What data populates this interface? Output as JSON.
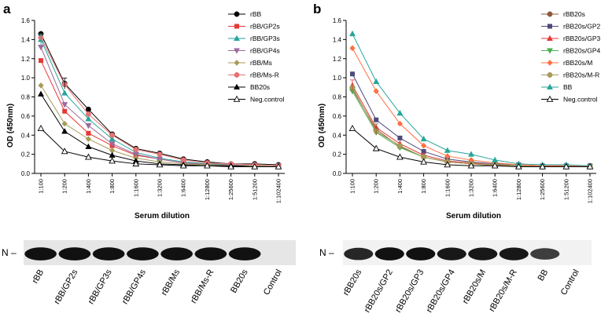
{
  "chart_data": [
    {
      "type": "line",
      "panel": "a",
      "xlabel": "Serum dilution",
      "ylabel": "OD (450nm)",
      "ylim": [
        0,
        1.6
      ],
      "yticks": [
        "0.0",
        "0.2",
        "0.4",
        "0.6",
        "0.8",
        "1.0",
        "1.2",
        "1.4",
        "1.6"
      ],
      "categories": [
        "1:100",
        "1:200",
        "1:400",
        "1:800",
        "1:1600",
        "1:3200",
        "1:6400",
        "1:12800",
        "1:25600",
        "1:51200",
        "1:102400"
      ],
      "legend_position": "top-right",
      "series": [
        {
          "name": "rBB",
          "color": "#000000",
          "marker": "circle",
          "values": [
            1.46,
            0.94,
            0.67,
            0.41,
            0.26,
            0.21,
            0.15,
            0.12,
            0.1,
            0.1,
            0.09
          ]
        },
        {
          "name": "rBB/GP2s",
          "color": "#e53935",
          "marker": "square",
          "values": [
            1.18,
            0.65,
            0.42,
            0.29,
            0.19,
            0.15,
            0.11,
            0.1,
            0.09,
            0.08,
            0.08
          ]
        },
        {
          "name": "rBB/GP3s",
          "color": "#26a69a",
          "marker": "triangle-up",
          "values": [
            1.4,
            0.84,
            0.57,
            0.36,
            0.22,
            0.16,
            0.12,
            0.1,
            0.09,
            0.08,
            0.08
          ]
        },
        {
          "name": "rBB/GP4s",
          "color": "#9c6b9c",
          "marker": "triangle-down",
          "values": [
            1.32,
            0.72,
            0.5,
            0.31,
            0.2,
            0.15,
            0.11,
            0.09,
            0.09,
            0.08,
            0.08
          ]
        },
        {
          "name": "rBB/Ms",
          "color": "#a89a5a",
          "marker": "diamond",
          "values": [
            0.92,
            0.52,
            0.36,
            0.24,
            0.16,
            0.12,
            0.1,
            0.09,
            0.08,
            0.08,
            0.08
          ]
        },
        {
          "name": "rBB/Ms-R",
          "color": "#e57373",
          "marker": "circle",
          "values": [
            1.42,
            0.93,
            0.62,
            0.4,
            0.25,
            0.2,
            0.14,
            0.11,
            0.1,
            0.09,
            0.08
          ]
        },
        {
          "name": "BB20s",
          "color": "#000000",
          "marker": "triangle-up",
          "values": [
            0.83,
            0.44,
            0.28,
            0.19,
            0.13,
            0.1,
            0.09,
            0.08,
            0.08,
            0.07,
            0.07
          ]
        },
        {
          "name": "Neg.control",
          "color": "#000000",
          "marker": "triangle-up-open",
          "values": [
            0.47,
            0.23,
            0.17,
            0.13,
            0.1,
            0.09,
            0.08,
            0.08,
            0.07,
            0.07,
            0.07
          ]
        }
      ]
    },
    {
      "type": "line",
      "panel": "b",
      "xlabel": "Serum dilution",
      "ylabel": "OD (450nm)",
      "ylim": [
        0,
        1.6
      ],
      "yticks": [
        "0.0",
        "0.2",
        "0.4",
        "0.6",
        "0.8",
        "1.0",
        "1.2",
        "1.4",
        "1.6"
      ],
      "categories": [
        "1:100",
        "1:200",
        "1:400",
        "1:800",
        "1:1600",
        "1:3200",
        "1:6400",
        "1:12800",
        "1:25600",
        "1:51200",
        "1:102400"
      ],
      "legend_position": "top-right",
      "series": [
        {
          "name": "rBB20s",
          "color": "#8d5a3c",
          "marker": "circle",
          "values": [
            0.88,
            0.46,
            0.28,
            0.17,
            0.12,
            0.1,
            0.08,
            0.08,
            0.07,
            0.07,
            0.07
          ]
        },
        {
          "name": "rBB20s/GP2",
          "color": "#4e4a7a",
          "marker": "square",
          "values": [
            1.04,
            0.56,
            0.37,
            0.23,
            0.15,
            0.12,
            0.1,
            0.09,
            0.08,
            0.08,
            0.08
          ]
        },
        {
          "name": "rBB20s/GP3",
          "color": "#e53935",
          "marker": "triangle-up",
          "values": [
            0.92,
            0.48,
            0.31,
            0.19,
            0.13,
            0.11,
            0.09,
            0.08,
            0.08,
            0.07,
            0.07
          ]
        },
        {
          "name": "rBB20s/GP4",
          "color": "#4caf50",
          "marker": "triangle-down",
          "values": [
            0.86,
            0.43,
            0.27,
            0.17,
            0.12,
            0.1,
            0.09,
            0.08,
            0.07,
            0.07,
            0.07
          ]
        },
        {
          "name": "rBB20s/M",
          "color": "#ff7043",
          "marker": "diamond",
          "values": [
            1.31,
            0.86,
            0.52,
            0.29,
            0.18,
            0.14,
            0.11,
            0.09,
            0.08,
            0.08,
            0.08
          ]
        },
        {
          "name": "rBB20s/M-R",
          "color": "#a89a5a",
          "marker": "circle",
          "values": [
            0.9,
            0.44,
            0.29,
            0.17,
            0.12,
            0.1,
            0.09,
            0.08,
            0.07,
            0.07,
            0.07
          ]
        },
        {
          "name": "BB",
          "color": "#26a69a",
          "marker": "triangle-up",
          "values": [
            1.46,
            0.96,
            0.63,
            0.36,
            0.24,
            0.2,
            0.14,
            0.1,
            0.09,
            0.09,
            0.08
          ]
        },
        {
          "name": "Neg.control",
          "color": "#000000",
          "marker": "triangle-up-open",
          "values": [
            0.47,
            0.26,
            0.17,
            0.12,
            0.09,
            0.08,
            0.08,
            0.07,
            0.07,
            0.07,
            0.07
          ]
        }
      ]
    }
  ],
  "blots": [
    {
      "panel": "a",
      "band_label": "N –",
      "lanes": [
        "rBB",
        "rBB/GP2s",
        "rBB/GP3s",
        "rBB/GP4s",
        "rBB/Ms",
        "rBB/Ms-R",
        "BB20s",
        "Control"
      ],
      "band_intensity": [
        1,
        1,
        1,
        1,
        1,
        1,
        1,
        0
      ],
      "background": "#e6e6e6"
    },
    {
      "panel": "b",
      "band_label": "N –",
      "lanes": [
        "rBB20s",
        "rBB20s/GP2",
        "rBB20s/GP3",
        "rBB20s/GP4",
        "rBB20s/M",
        "rBB20s/M-R",
        "BB",
        "Control"
      ],
      "band_intensity": [
        0.85,
        1,
        1,
        0.95,
        0.95,
        0.95,
        0.7,
        0
      ],
      "background": "#f2f2f2"
    }
  ]
}
